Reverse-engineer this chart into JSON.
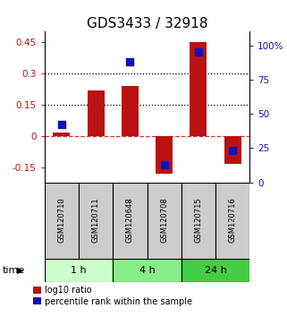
{
  "title": "GDS3433 / 32918",
  "samples": [
    "GSM120710",
    "GSM120711",
    "GSM120648",
    "GSM120708",
    "GSM120715",
    "GSM120716"
  ],
  "log10_ratio": [
    0.02,
    0.22,
    0.24,
    -0.18,
    0.45,
    -0.13
  ],
  "percentile_rank_pct": [
    42,
    null,
    88,
    13,
    95,
    23
  ],
  "time_groups": [
    {
      "label": "1 h",
      "samples": [
        0,
        1
      ],
      "color": "#ccffcc"
    },
    {
      "label": "4 h",
      "samples": [
        2,
        3
      ],
      "color": "#88ee88"
    },
    {
      "label": "24 h",
      "samples": [
        4,
        5
      ],
      "color": "#44cc44"
    }
  ],
  "ylim_left": [
    -0.22,
    0.5
  ],
  "ylim_right": [
    0,
    110
  ],
  "left_ticks": [
    -0.15,
    0.0,
    0.15,
    0.3,
    0.45
  ],
  "left_tick_labels": [
    "-0.15",
    "0",
    "0.15",
    "0.3",
    "0.45"
  ],
  "right_ticks": [
    0,
    25,
    50,
    75,
    100
  ],
  "right_tick_labels": [
    "0",
    "25",
    "50",
    "75",
    "100%"
  ],
  "hlines_dotted": [
    0.15,
    0.3
  ],
  "hline_dashed": 0.0,
  "bar_color": "#bb1111",
  "dot_color": "#1111bb",
  "bar_width": 0.5,
  "dot_size": 40,
  "sample_box_color": "#cccccc",
  "legend_red_label": "log10 ratio",
  "legend_blue_label": "percentile rank within the sample",
  "time_label": "time",
  "title_fontsize": 11,
  "tick_fontsize": 7.5,
  "sample_fontsize": 6.0
}
